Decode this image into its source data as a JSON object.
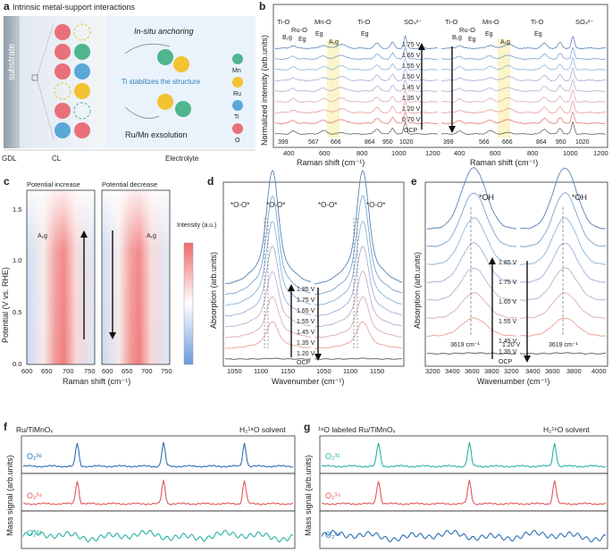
{
  "panels": {
    "a": {
      "label": "a",
      "title": "Intrinsic metal-support interactions",
      "substrate": "substrate",
      "in_situ": "In-situ anchoring",
      "ti_note": "Ti stabilizes the structure",
      "exsolution": "Ru/Mn exsolution",
      "legend": [
        "Mn",
        "Ru",
        "Ti",
        "O"
      ],
      "bottom_labels": [
        "GDL",
        "CL",
        "Electrolyte"
      ],
      "colors": {
        "Mn": "#4fb58f",
        "Ru": "#f2c230",
        "Ti": "#5aa8d6",
        "O": "#e9707a"
      }
    },
    "b": {
      "label": "b",
      "ylabel": "Normalized intensity (arb.units)",
      "xlabel": "Raman shift (cm⁻¹)",
      "xlim": [
        300,
        1200
      ],
      "ticks": [
        "400",
        "600",
        "800",
        "1000",
        "1200"
      ],
      "band_labels": [
        "Ti-O",
        "Ru-O",
        "Mn-O",
        "Ti-O",
        "SO₄²⁻"
      ],
      "mode_labels": [
        "B₁g",
        "Eg",
        "Eg",
        "A₁g",
        "Eg"
      ],
      "peaks_left": [
        "399",
        "567",
        "666",
        "864",
        "950",
        "1020"
      ],
      "peaks_right": [
        "399",
        "566",
        "666",
        "864",
        "950",
        "1020"
      ],
      "potentials": [
        "1.75 V",
        "1.65 V",
        "1.55 V",
        "1.50 V",
        "1.45 V",
        "1.35 V",
        "1.20 V",
        "0.70 V",
        "OCP"
      ]
    },
    "c": {
      "label": "c",
      "title_left": "Potential increase",
      "title_right": "Potential decrease",
      "ylabel": "Potential (V vs. RHE)",
      "xlabel": "Raman shift (cm⁻¹)",
      "yticks": [
        "0.0",
        "0.5",
        "1.0",
        "1.5"
      ],
      "xticks": [
        "600",
        "650",
        "700",
        "750"
      ],
      "peak": "A₁g",
      "cbar_title": "Intensity (a.u.)",
      "cbar_high": "#f06a6a",
      "cbar_low": "#6a9ae0"
    },
    "d": {
      "label": "d",
      "ylabel": "Absorption (arb.units)",
      "xlabel": "Wavenumber (cm⁻¹)",
      "ticks": [
        "1050",
        "1100",
        "1150",
        "1050",
        "1100",
        "1150"
      ],
      "species": "*O-O*",
      "potentials": [
        "1.85 V",
        "1.75 V",
        "1.65 V",
        "1.55 V",
        "1.45 V",
        "1.35 V",
        "1.20 V",
        "OCP"
      ]
    },
    "e": {
      "label": "e",
      "ylabel": "Absorption (arb.units)",
      "xlabel": "Wavenumber (cm⁻¹)",
      "ticks": [
        "3200",
        "3400",
        "3600",
        "3800",
        "3200",
        "3400",
        "3600",
        "3800",
        "4000"
      ],
      "species": "*OH",
      "peak": "3619 cm⁻¹",
      "potentials": [
        "1.85 V",
        "1.75 V",
        "1.65 V",
        "1.55 V",
        "1.45 V",
        "1.35 V",
        "1.20 V",
        "OCP"
      ]
    },
    "f": {
      "label": "f",
      "sample": "Ru/TiMnOₓ",
      "solvent": "H₂¹⁸O solvent",
      "ylabel": "Mass signal (arb.units)",
      "traces": [
        "O₂³⁶",
        "O₂³⁴",
        "O₂³²"
      ]
    },
    "g": {
      "label": "g",
      "sample": "¹⁸O labeled Ru/TiMnOₓ",
      "solvent": "H₂¹⁶O solvent",
      "ylabel": "Mass signal (arb.units)",
      "traces": [
        "O₂³²",
        "O₂³⁴",
        "O₂³⁶"
      ]
    }
  },
  "chart_data": [
    {
      "type": "line",
      "panel": "b",
      "title": "In-situ Raman spectra (potential up / down)",
      "xlabel": "Raman shift (cm-1)",
      "ylabel": "Normalized intensity (arb.units)",
      "xlim": [
        300,
        1200
      ],
      "peak_positions": [
        399,
        567,
        666,
        864,
        950,
        1020
      ],
      "series_names": [
        "OCP",
        "0.70 V",
        "1.20 V",
        "1.35 V",
        "1.45 V",
        "1.50 V",
        "1.55 V",
        "1.65 V",
        "1.75 V"
      ],
      "series_colors": [
        "#555555",
        "#e06b6b",
        "#e8918f",
        "#d9a0b0",
        "#b8a0c8",
        "#9aa6d0",
        "#7fb0d8",
        "#6d98c8",
        "#4a78b0"
      ]
    },
    {
      "type": "heatmap",
      "panel": "c",
      "xlabel": "Raman shift (cm-1)",
      "ylabel": "Potential (V vs. RHE)",
      "xlim": [
        600,
        750
      ],
      "ylim": [
        0,
        1.7
      ],
      "hot_band": [
        650,
        705
      ]
    },
    {
      "type": "line",
      "panel": "d",
      "xlabel": "Wavenumber (cm-1)",
      "ylabel": "Absorption (arb.units)",
      "xlim": [
        1030,
        1175
      ],
      "peak_center": 1110,
      "series_names": [
        "OCP",
        "1.20 V",
        "1.35 V",
        "1.45 V",
        "1.55 V",
        "1.65 V",
        "1.75 V",
        "1.85 V"
      ],
      "series_colors": [
        "#555555",
        "#e89a90",
        "#d7a6b4",
        "#b9a6c9",
        "#98a9d2",
        "#7fafd8",
        "#6c9ccd",
        "#4a74ad"
      ]
    },
    {
      "type": "line",
      "panel": "e",
      "xlabel": "Wavenumber (cm-1)",
      "ylabel": "Absorption (arb.units)",
      "xlim": [
        3200,
        4000
      ],
      "peak_center": 3619,
      "series_names": [
        "OCP",
        "1.20 V",
        "1.35 V",
        "1.45 V",
        "1.55 V",
        "1.65 V",
        "1.75 V",
        "1.85 V"
      ],
      "series_colors": [
        "#555555",
        "#e89a90",
        "#d7a6b4",
        "#b9a6c9",
        "#98a9d2",
        "#7fafd8",
        "#6c9ccd",
        "#4a74ad"
      ]
    },
    {
      "type": "line",
      "panel": "f",
      "ylabel": "Mass signal (arb.units)",
      "series": [
        {
          "name": "O2-36",
          "color": "#2f6fb5",
          "pulses": 3
        },
        {
          "name": "O2-34",
          "color": "#e05a5a",
          "pulses": 3
        },
        {
          "name": "O2-32",
          "color": "#2bb3a3",
          "pulses": 0
        }
      ]
    },
    {
      "type": "line",
      "panel": "g",
      "ylabel": "Mass signal (arb.units)",
      "series": [
        {
          "name": "O2-32",
          "color": "#2bb3a3",
          "pulses": 3
        },
        {
          "name": "O2-34",
          "color": "#e05a5a",
          "pulses": 3
        },
        {
          "name": "O2-36",
          "color": "#2f6fb5",
          "pulses": 0
        }
      ]
    }
  ]
}
